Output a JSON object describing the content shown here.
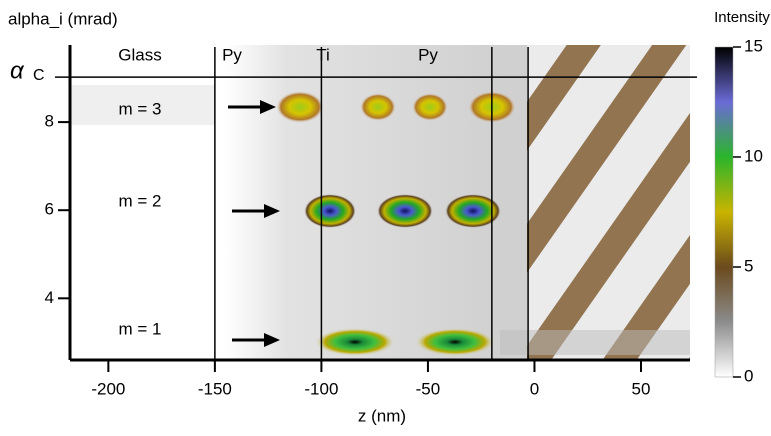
{
  "chart_data": {
    "type": "heatmap",
    "ylabel": "alpha_i (mrad)",
    "xlabel": "z (nm)",
    "xlim": [
      -218,
      73
    ],
    "ylim": [
      2.6,
      9.75
    ],
    "xticks": [
      -200,
      -150,
      -100,
      -50,
      0,
      50
    ],
    "yticks": [
      4,
      6,
      8
    ],
    "alpha_c": 9.02,
    "alpha_c_symbol": "α",
    "alpha_c_sub": "C",
    "interfaces": [
      -150,
      -100,
      -20,
      -3
    ],
    "layers": [
      "Glass",
      "Py",
      "Ti",
      "Py"
    ],
    "modes": [
      "m = 3",
      "m = 2",
      "m = 1"
    ],
    "colorbar": {
      "label": "Intensity",
      "lim": [
        0,
        15
      ],
      "ticks": [
        0,
        5,
        10,
        15
      ],
      "colors": [
        "#ffffff",
        "#8c8c8c",
        "#6b4a1c",
        "#c9b400",
        "#2bb52b",
        "#6b6bd6",
        "#000000"
      ]
    }
  }
}
